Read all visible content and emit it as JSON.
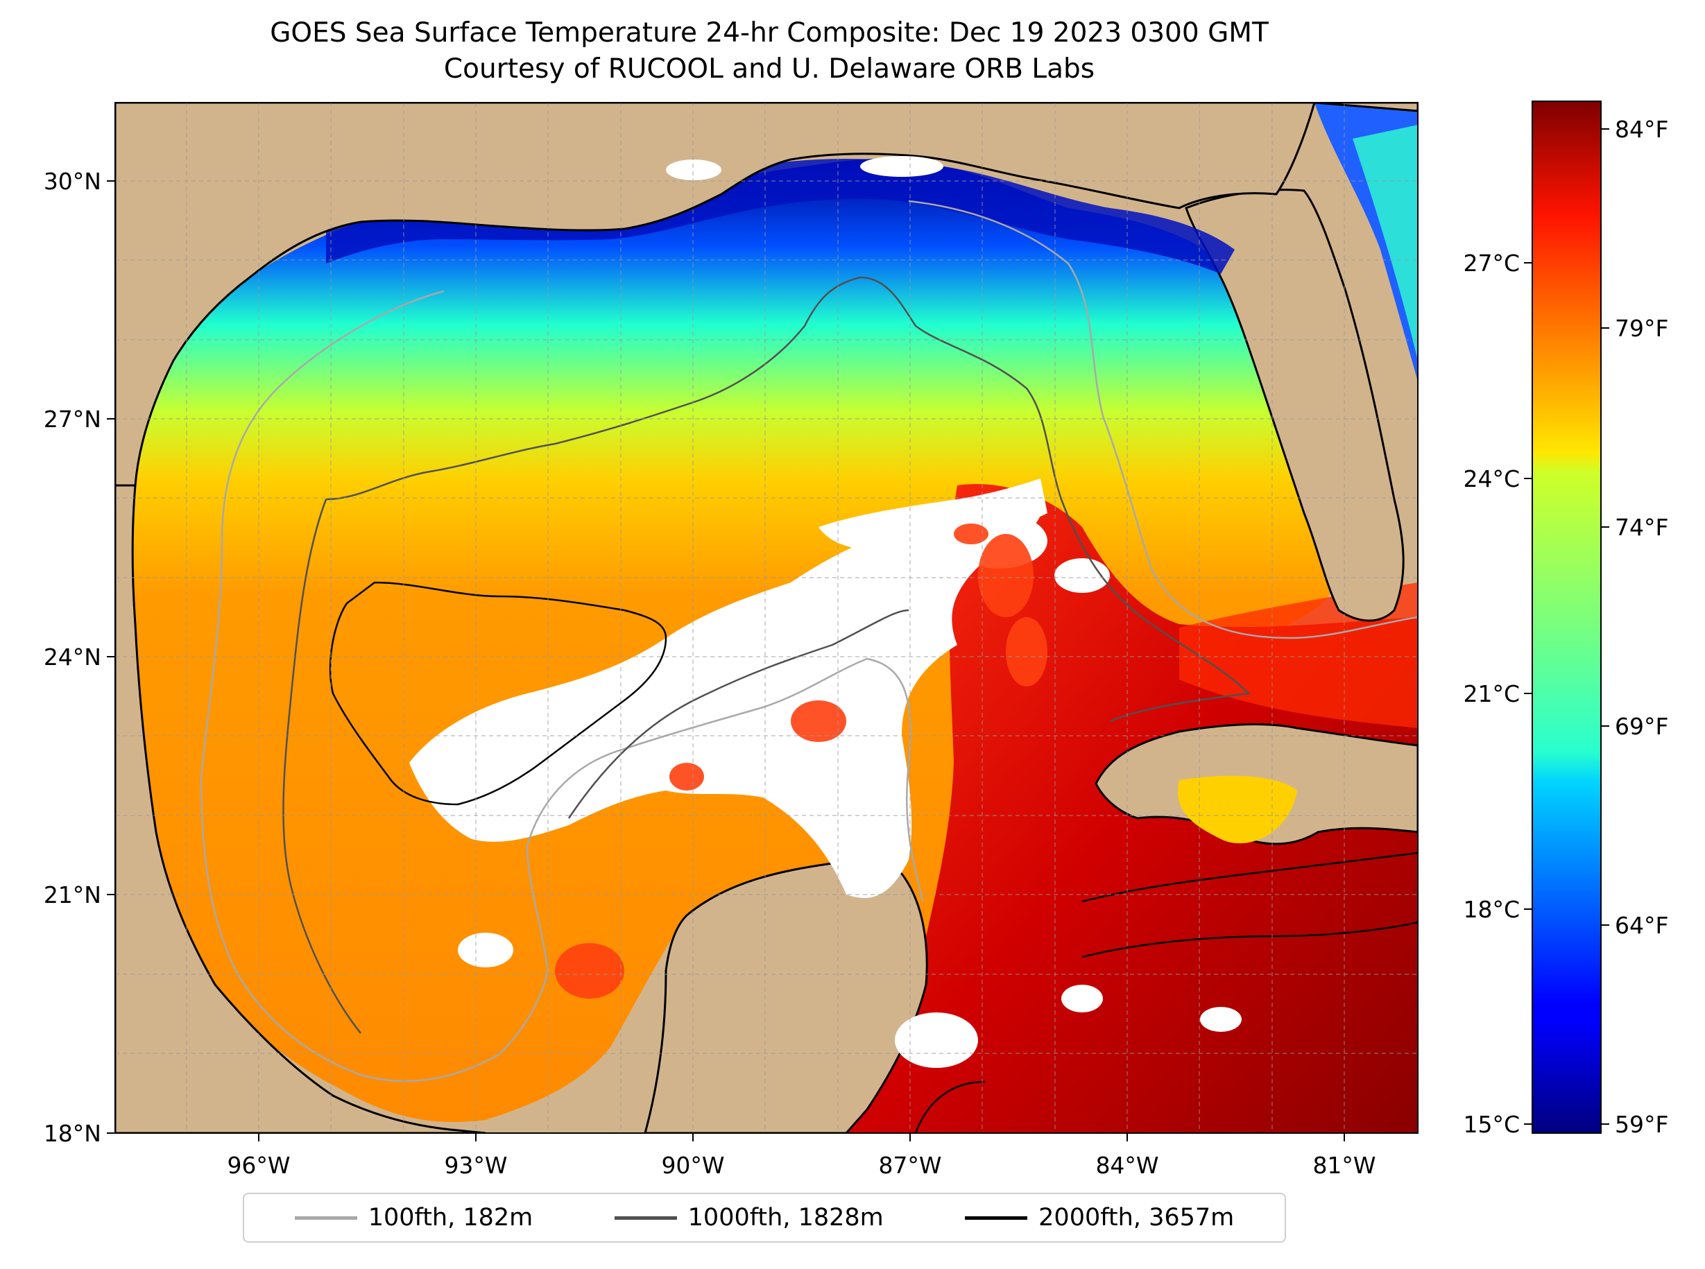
{
  "title": "GOES Sea Surface Temperature 24-hr Composite: Dec 19 2023 0300 GMT",
  "subtitle": "Courtesy of RUCOOL and U. Delaware ORB Labs",
  "map": {
    "region": "Gulf of Mexico",
    "lon_range": [
      -98,
      -80
    ],
    "lat_range": [
      18,
      31
    ],
    "lat_ticks": [
      "18°N",
      "21°N",
      "24°N",
      "27°N",
      "30°N"
    ],
    "lon_ticks": [
      "96°W",
      "93°W",
      "90°W",
      "87°W",
      "84°W",
      "81°W"
    ],
    "gridlines": true,
    "colors": {
      "land": "#d2b48c",
      "no_data": "#ffffff",
      "coastline": "#000000"
    }
  },
  "colorbar": {
    "colormap": "jet",
    "fahrenheit_ticks": [
      "59°F",
      "64°F",
      "69°F",
      "74°F",
      "79°F",
      "84°F"
    ],
    "celsius_ticks": [
      "15°C",
      "18°C",
      "21°C",
      "24°C",
      "27°C"
    ]
  },
  "legend": [
    {
      "label": "100fth, 182m",
      "color": "#a9a9a9"
    },
    {
      "label": "1000fth, 1828m",
      "color": "#505050"
    },
    {
      "label": "2000fth, 3657m",
      "color": "#000000"
    }
  ]
}
